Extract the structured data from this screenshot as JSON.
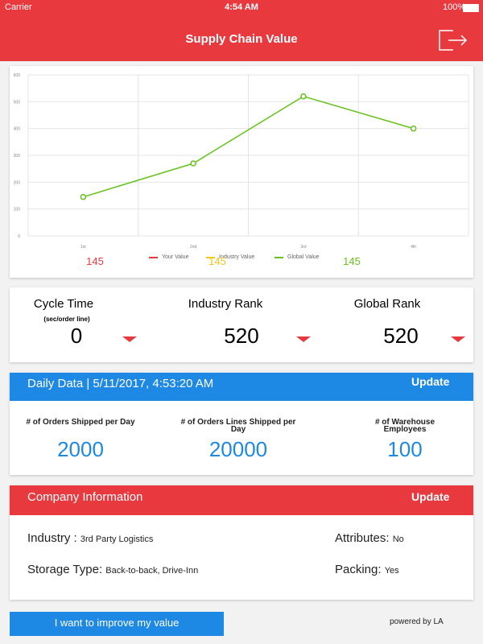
{
  "status_bar": {
    "carrier": "Carrier",
    "time": "4:54 AM",
    "battery": "100%"
  },
  "header": {
    "title": "Supply Chain Value"
  },
  "chart": {
    "type": "line",
    "categories": [
      "1st",
      "2nd",
      "3rd",
      "4th"
    ],
    "series": [
      {
        "name": "Your Value",
        "color": "#e8393f",
        "values": [
          null,
          null,
          null,
          null
        ],
        "summary": "145"
      },
      {
        "name": "Industry Value",
        "color": "#f5c518",
        "values": [
          null,
          null,
          null,
          null
        ],
        "summary": "145"
      },
      {
        "name": "Global Value",
        "color": "#66c21a",
        "values": [
          145,
          270,
          520,
          400
        ],
        "summary": "145"
      }
    ],
    "ylim": [
      0,
      600
    ],
    "yticks": [
      0,
      100,
      200,
      300,
      400,
      500,
      600
    ],
    "grid": true
  },
  "ranks": [
    {
      "title": "Cycle Time",
      "subtitle": "(sec/order line)",
      "value": "0"
    },
    {
      "title": "Industry Rank",
      "value": "520"
    },
    {
      "title": "Global Rank",
      "value": "520"
    }
  ],
  "daily": {
    "title": "Daily Data | 5/11/2017, 4:53:20 AM",
    "action": "Update",
    "items": [
      {
        "label": "# of Orders Shipped per Day",
        "value": "2000"
      },
      {
        "label": "# of Orders Lines Shipped per Day",
        "value": "20000"
      },
      {
        "label": "# of Warehouse Employees",
        "value": "100"
      }
    ]
  },
  "company": {
    "title": "Company Information",
    "action": "Update",
    "fields": [
      {
        "label": "Industry :",
        "value": "3rd Party Logistics"
      },
      {
        "label": "Attributes:",
        "value": "No"
      },
      {
        "label": "Storage Type:",
        "value": "Back-to-back, Drive-Inn"
      },
      {
        "label": "Packing:",
        "value": "Yes"
      }
    ]
  },
  "footer": {
    "button": "I want to improve my value",
    "credit": "powered by LA"
  }
}
